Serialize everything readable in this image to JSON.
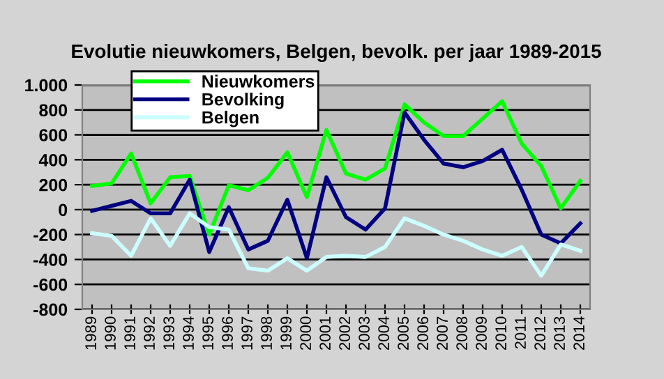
{
  "chart_data": {
    "type": "line",
    "title": "Evolutie nieuwkomers, Belgen, bevolk. per jaar 1989-2015",
    "categories": [
      "1989",
      "1990",
      "1991",
      "1992",
      "1993",
      "1994",
      "1995",
      "1996",
      "1997",
      "1998",
      "1999",
      "2000",
      "2001",
      "2002",
      "2003",
      "2004",
      "2005",
      "2006",
      "2007",
      "2008",
      "2009",
      "2010",
      "2011",
      "2012",
      "2013",
      "2014"
    ],
    "series": [
      {
        "name": "Nieuwkomers",
        "color": "#00ff00",
        "values": [
          190,
          210,
          450,
          50,
          260,
          270,
          -200,
          195,
          155,
          255,
          460,
          100,
          640,
          290,
          240,
          330,
          845,
          700,
          590,
          590,
          730,
          870,
          530,
          350,
          10,
          230
        ]
      },
      {
        "name": "Bevolking",
        "color": "#000080",
        "values": [
          -10,
          30,
          70,
          -30,
          -30,
          240,
          -340,
          20,
          -320,
          -250,
          80,
          -390,
          260,
          -60,
          -160,
          10,
          780,
          560,
          370,
          340,
          390,
          480,
          160,
          -200,
          -270,
          -110
        ]
      },
      {
        "name": "Belgen",
        "color": "#ccffff",
        "values": [
          -190,
          -210,
          -370,
          -70,
          -290,
          -30,
          -140,
          -160,
          -470,
          -490,
          -390,
          -490,
          -380,
          -370,
          -380,
          -300,
          -70,
          -130,
          -200,
          -250,
          -320,
          -370,
          -300,
          -530,
          -280,
          -330
        ]
      }
    ],
    "ylim": [
      -800,
      1000
    ],
    "yticks": [
      {
        "value": -800,
        "label": "-800"
      },
      {
        "value": -600,
        "label": "-600"
      },
      {
        "value": -400,
        "label": "-400"
      },
      {
        "value": -200,
        "label": "-200"
      },
      0,
      200,
      400,
      600,
      800,
      {
        "value": 1000,
        "label": "1.000"
      }
    ],
    "grid": "y",
    "legend": "top left",
    "marker": "none",
    "line_style": "solid"
  }
}
